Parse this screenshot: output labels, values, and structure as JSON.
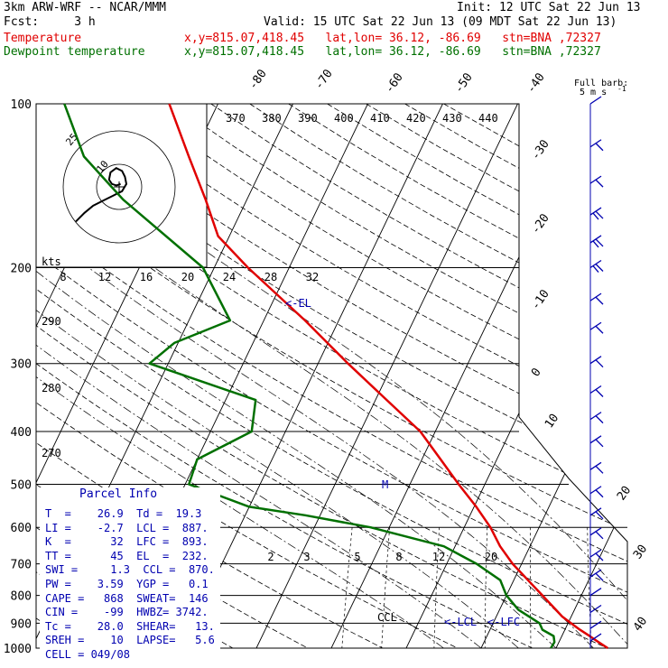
{
  "header": {
    "model": "3km ARW-WRF -- NCAR/MMM",
    "init": "Init: 12 UTC Sat 22 Jun 13",
    "fcst": "Fcst:     3 h",
    "valid": "Valid: 15 UTC Sat 22 Jun 13 (09 MDT Sat 22 Jun 13)",
    "temp_label": "Temperature",
    "temp_loc": "x,y=815.07,418.45   lat,lon= 36.12, -86.69   stn=BNA ,72327",
    "dew_label": "Dewpoint temperature",
    "dew_loc": "x,y=815.07,418.45   lat,lon= 36.12, -86.69   stn=BNA ,72327"
  },
  "colors": {
    "temperature": "#e00000",
    "dewpoint": "#007000",
    "text_blue": "#0000b0"
  },
  "barb_label": {
    "line1": "Full barb:",
    "line2": "5 m s",
    "sup": "-1"
  },
  "chart_data": {
    "type": "line",
    "pressure_levels": [
      100,
      200,
      300,
      400,
      500,
      600,
      700,
      800,
      900,
      1000
    ],
    "isotherm_labels": [
      "-80",
      "-70",
      "-60",
      "-50",
      "-40",
      "-30",
      "-20",
      "-10",
      "0",
      "10",
      "20",
      "30",
      "40"
    ],
    "theta_labels": [
      "370",
      "380",
      "390",
      "400",
      "410",
      "420",
      "430",
      "440"
    ],
    "hodo_speed_labels": [
      "8",
      "12",
      "16",
      "20",
      "24",
      "28",
      "32"
    ],
    "hodo_units": "kts",
    "dry_adiabat_labels": [
      "290",
      "280",
      "270"
    ],
    "mixing_ratio_labels": [
      "2",
      "3",
      "5",
      "8",
      "12",
      "20"
    ],
    "annotations": [
      "<-EL",
      "<-LCL",
      "<-LFC",
      "CCL",
      "M"
    ],
    "hodo_ring_labels": [
      "25",
      "10"
    ],
    "series": [
      {
        "name": "Temperature",
        "points": [
          [
            1000,
            26.9
          ],
          [
            975,
            25.3
          ],
          [
            950,
            23.7
          ],
          [
            925,
            22.0
          ],
          [
            900,
            20.4
          ],
          [
            875,
            18.8
          ],
          [
            850,
            17.5
          ],
          [
            800,
            14.8
          ],
          [
            750,
            11.9
          ],
          [
            700,
            8.8
          ],
          [
            650,
            6.0
          ],
          [
            600,
            3.5
          ],
          [
            550,
            0.3
          ],
          [
            500,
            -3.5
          ],
          [
            450,
            -7.5
          ],
          [
            400,
            -12.0
          ],
          [
            350,
            -18.5
          ],
          [
            300,
            -26.0
          ],
          [
            250,
            -34.5
          ],
          [
            200,
            -45.5
          ],
          [
            175,
            -51.5
          ],
          [
            150,
            -55.5
          ],
          [
            125,
            -60.5
          ],
          [
            100,
            -66.5
          ]
        ]
      },
      {
        "name": "Dewpoint temperature",
        "points": [
          [
            1000,
            19.3
          ],
          [
            975,
            19.4
          ],
          [
            950,
            18.9
          ],
          [
            925,
            17.0
          ],
          [
            900,
            16.2
          ],
          [
            850,
            12.5
          ],
          [
            800,
            10.0
          ],
          [
            750,
            8.2
          ],
          [
            700,
            4.0
          ],
          [
            650,
            -1.5
          ],
          [
            600,
            -12.5
          ],
          [
            570,
            -22.0
          ],
          [
            550,
            -30.0
          ],
          [
            500,
            -39.5
          ],
          [
            450,
            -40.0
          ],
          [
            400,
            -34.5
          ],
          [
            350,
            -36.0
          ],
          [
            300,
            -52.5
          ],
          [
            275,
            -50.5
          ],
          [
            250,
            -44.5
          ],
          [
            200,
            -51.5
          ],
          [
            150,
            -66.5
          ],
          [
            125,
            -74.5
          ],
          [
            100,
            -80.5
          ]
        ]
      }
    ],
    "hodograph_trace": [
      [
        -15,
        -12
      ],
      [
        -12,
        -9
      ],
      [
        -9,
        -6.5
      ],
      [
        -5,
        -4.5
      ],
      [
        -2,
        -3
      ],
      [
        1,
        -1.5
      ],
      [
        2.5,
        1
      ],
      [
        2,
        3.5
      ],
      [
        1,
        5.5
      ],
      [
        -1,
        6.5
      ],
      [
        -3,
        5
      ],
      [
        -3.5,
        2.5
      ],
      [
        -2.5,
        1
      ],
      [
        -1,
        0.5
      ],
      [
        0.5,
        1
      ]
    ],
    "wind_barbs": [
      {
        "p": 100,
        "spd": 5
      },
      {
        "p": 120,
        "spd": 10
      },
      {
        "p": 140,
        "spd": 10
      },
      {
        "p": 160,
        "spd": 15
      },
      {
        "p": 180,
        "spd": 15
      },
      {
        "p": 200,
        "spd": 15
      },
      {
        "p": 230,
        "spd": 10
      },
      {
        "p": 260,
        "spd": 10
      },
      {
        "p": 300,
        "spd": 10
      },
      {
        "p": 340,
        "spd": 10
      },
      {
        "p": 380,
        "spd": 10
      },
      {
        "p": 420,
        "spd": 10
      },
      {
        "p": 470,
        "spd": 10
      },
      {
        "p": 520,
        "spd": 10
      },
      {
        "p": 570,
        "spd": 10
      },
      {
        "p": 620,
        "spd": 10
      },
      {
        "p": 680,
        "spd": 10
      },
      {
        "p": 740,
        "spd": 10
      },
      {
        "p": 800,
        "spd": 5
      },
      {
        "p": 860,
        "spd": 5
      },
      {
        "p": 920,
        "spd": 5
      },
      {
        "p": 970,
        "spd": 5
      }
    ],
    "xlabel": "",
    "ylabel": "",
    "ylim": [
      1000,
      100
    ],
    "grid": true
  },
  "parcel_info": {
    "title": "Parcel Info",
    "rows": [
      "T  =    26.9  Td =  19.3",
      "LI =    -2.7  LCL =  887.",
      "K  =      32  LFC =  893.",
      "TT =      45  EL  =  232.",
      "SWI =     1.3  CCL =  870.",
      "PW =    3.59  YGP =   0.1",
      "CAPE =   868  SWEAT=  146",
      "CIN =    -99  HWBZ= 3742.",
      "Tc =    28.0  SHEAR=   13.",
      "SREH =    10  LAPSE=   5.6",
      "CELL = 049/08"
    ]
  }
}
